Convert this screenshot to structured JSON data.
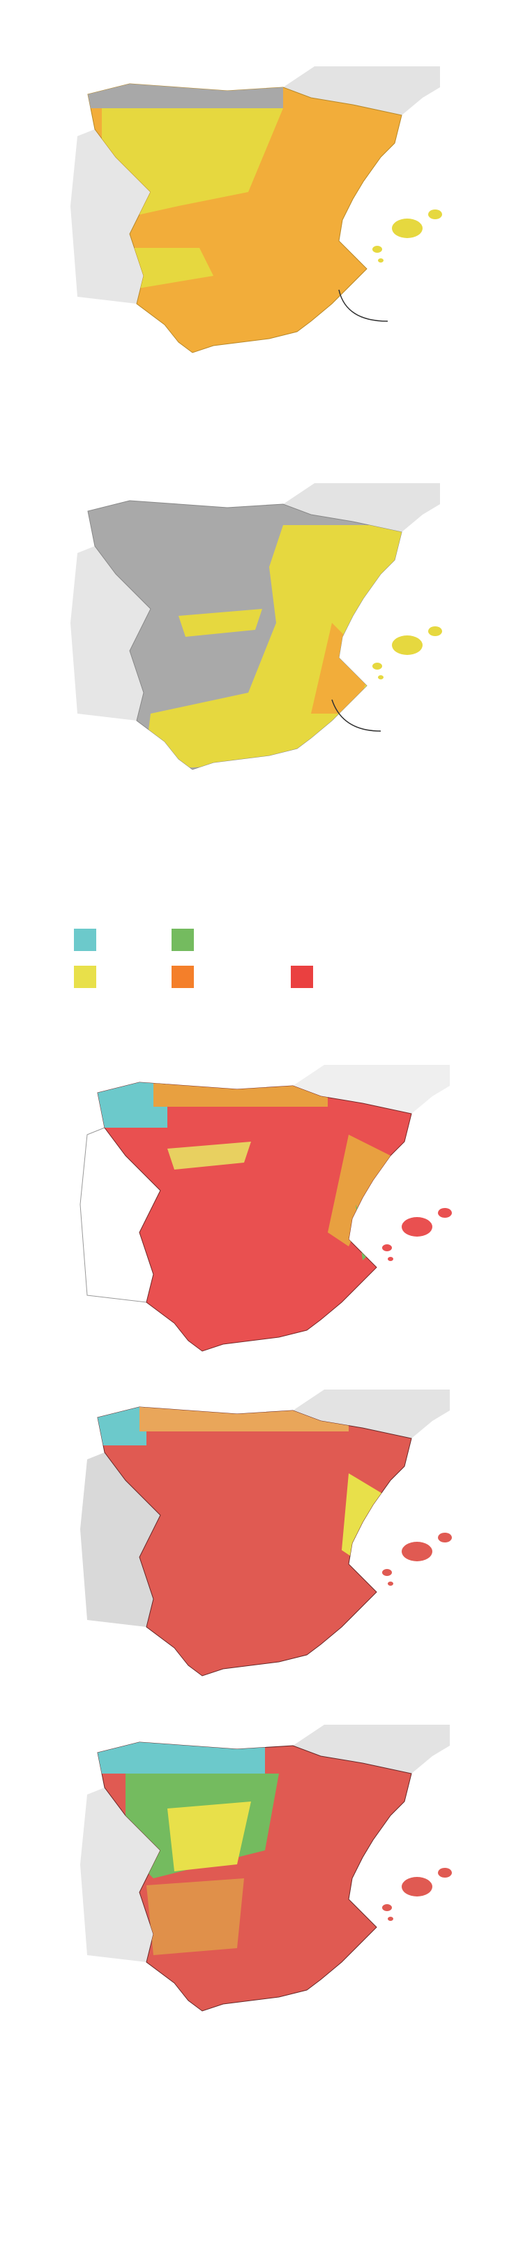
{
  "legend": {
    "swatches": [
      {
        "color": "#6cc9cb"
      },
      {
        "color": "#74bb5f"
      },
      {
        "color": "#e8e04a"
      },
      {
        "color": "#f47f2a"
      },
      {
        "color": "#ea4040"
      }
    ]
  }
}
